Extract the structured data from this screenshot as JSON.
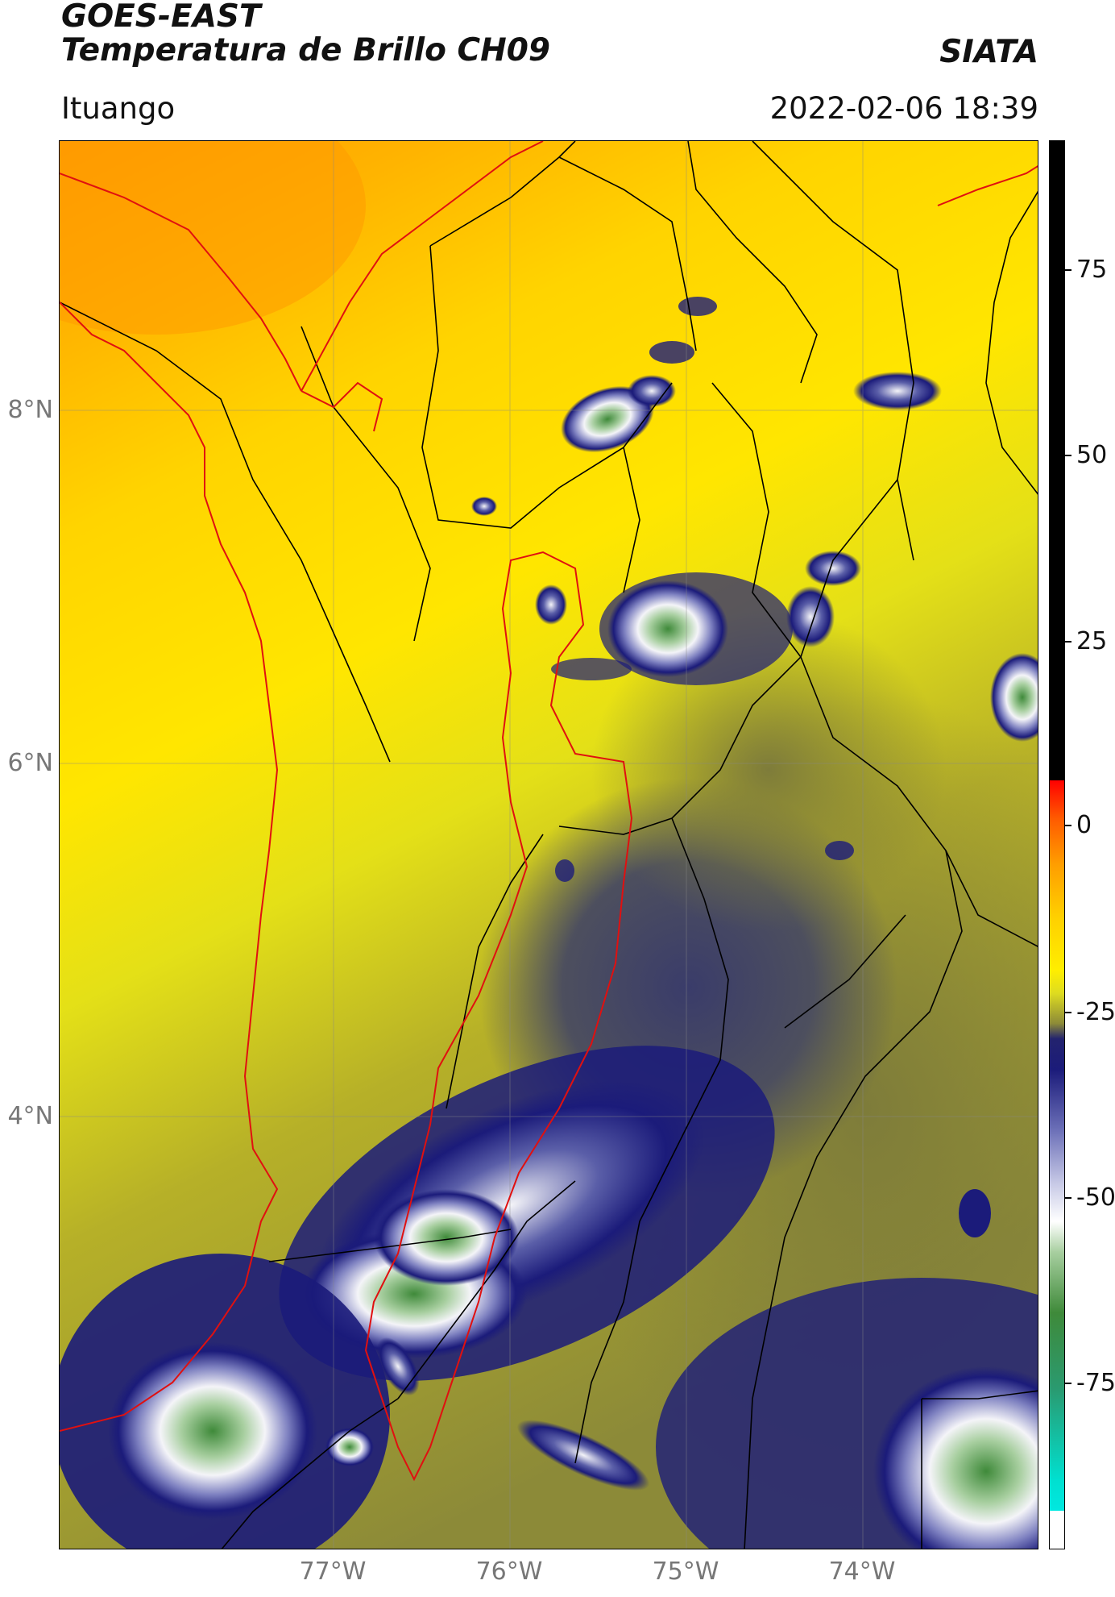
{
  "header": {
    "title_line1": "GOES-EAST",
    "title_line2": "Temperatura de Brillo CH09",
    "brand": "SIATA",
    "location": "Ituango",
    "timestamp": "2022-02-06 18:39"
  },
  "map": {
    "lat_ticks": [
      "8°N",
      "6°N",
      "4°N"
    ],
    "lon_ticks": [
      "77°W",
      "76°W",
      "75°W",
      "74°W"
    ],
    "colors": {
      "warm_orange": "#ff9a00",
      "warm_yellow": "#ffe600",
      "olive": "#8c8a38",
      "deep_blue": "#1b1b7a",
      "white": "#f4f4f8",
      "green": "#3f8a3a",
      "border_red": "#e01010",
      "border_black": "#000000"
    }
  },
  "colorbar": {
    "ticks": [
      "75",
      "50",
      "25",
      "0",
      "-25",
      "-50",
      "-75"
    ],
    "range": [
      -93,
      92
    ]
  }
}
